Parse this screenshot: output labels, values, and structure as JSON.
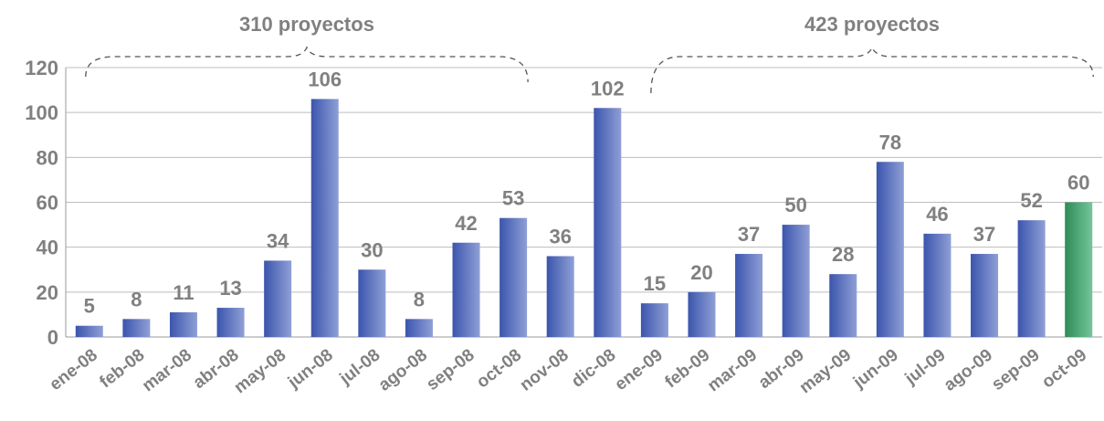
{
  "chart_data": {
    "type": "bar",
    "categories": [
      "ene-08",
      "feb-08",
      "mar-08",
      "abr-08",
      "may-08",
      "jun-08",
      "jul-08",
      "ago-08",
      "sep-08",
      "oct-08",
      "nov-08",
      "dic-08",
      "ene-09",
      "feb-09",
      "mar-09",
      "abr-09",
      "may-09",
      "jun-09",
      "jul-09",
      "ago-09",
      "sep-09",
      "oct-09"
    ],
    "values": [
      5,
      8,
      11,
      13,
      34,
      106,
      30,
      8,
      42,
      53,
      36,
      102,
      15,
      20,
      37,
      50,
      28,
      78,
      46,
      37,
      52,
      60
    ],
    "data_labels": [
      "5",
      "8",
      "11",
      "13",
      "34",
      "106",
      "30",
      "8",
      "42",
      "53",
      "36",
      "102",
      "15",
      "20",
      "37",
      "50",
      "28",
      "78",
      "46",
      "37",
      "52",
      "60"
    ],
    "highlight_index": 21,
    "ylim": [
      0,
      120
    ],
    "yticks": [
      0,
      20,
      40,
      60,
      80,
      100,
      120
    ],
    "grid": true,
    "colors": {
      "bar": "#4a63b5",
      "bar_light": "#8f9fd6",
      "highlight": "#2e8b57",
      "highlight_light": "#74c69a",
      "highlight_label": "#2e8b57",
      "text": "#808080",
      "grid": "#bdbdbd"
    },
    "annotations": [
      {
        "text": "310 proyectos",
        "from_index": 0,
        "to_index": 9
      },
      {
        "text": "423 proyectos",
        "from_index": 12,
        "to_index": 21
      }
    ]
  }
}
